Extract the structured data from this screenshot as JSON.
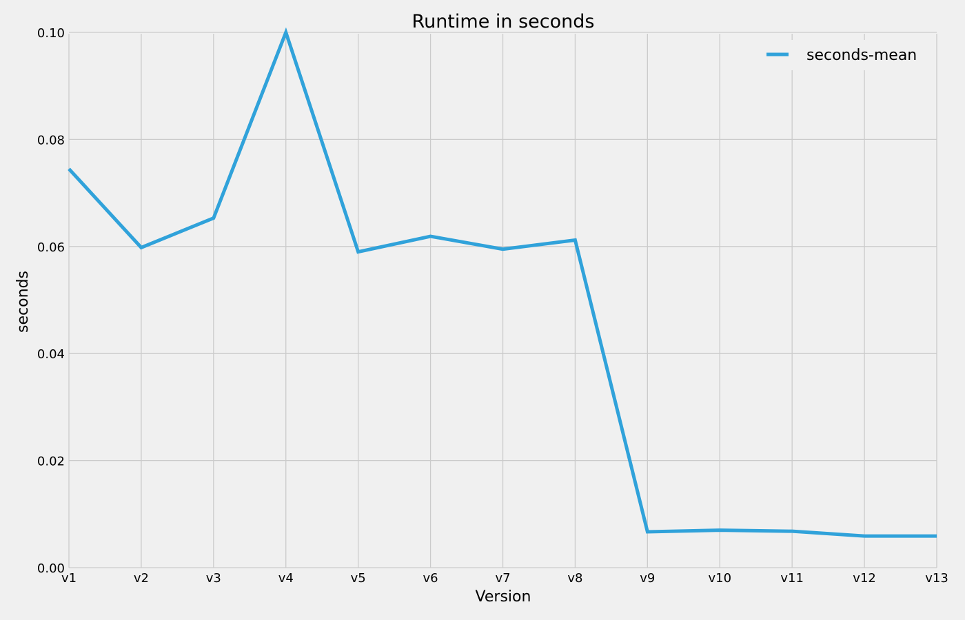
{
  "chart_data": {
    "type": "line",
    "title": "Runtime in seconds",
    "xlabel": "Version",
    "ylabel": "seconds",
    "categories": [
      "v1",
      "v2",
      "v3",
      "v4",
      "v5",
      "v6",
      "v7",
      "v8",
      "v9",
      "v10",
      "v11",
      "v12",
      "v13"
    ],
    "series": [
      {
        "name": "seconds-mean",
        "color": "#30a2da",
        "values": [
          0.0745,
          0.0598,
          0.0653,
          0.1,
          0.059,
          0.0619,
          0.0595,
          0.0612,
          0.0067,
          0.007,
          0.0068,
          0.0059,
          0.0059
        ]
      }
    ],
    "ylim": [
      0.0,
      0.1
    ],
    "yticks": [
      "0.00",
      "0.02",
      "0.04",
      "0.06",
      "0.08",
      "0.10"
    ],
    "ytick_values": [
      0.0,
      0.02,
      0.04,
      0.06,
      0.08,
      0.1
    ],
    "grid": true,
    "legend_position": "top-right",
    "background": "#f0f0f0",
    "grid_color": "#cbcbcb"
  }
}
